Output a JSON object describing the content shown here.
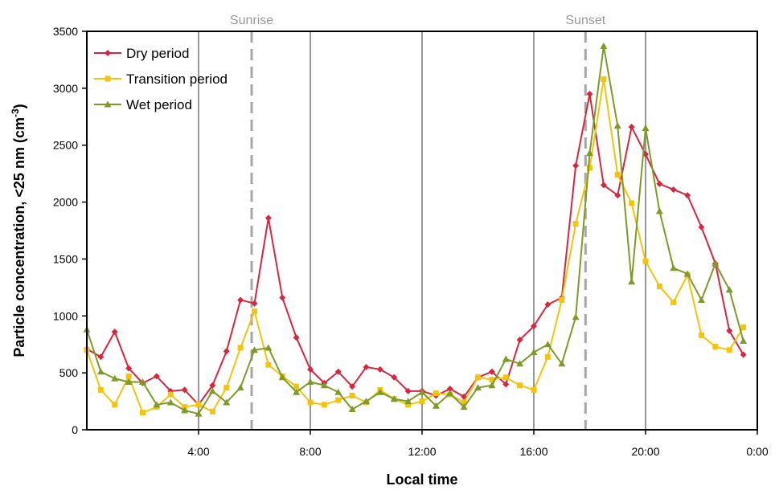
{
  "chart_data": {
    "type": "line",
    "xlabel": "Local time",
    "ylabel": "Particle concentration, <25 nm (cm",
    "ylabel_sup": "-3",
    "ylabel_end": ")",
    "xlim": [
      0,
      24
    ],
    "ylim": [
      0,
      3500
    ],
    "x_ticks": [
      {
        "v": 4,
        "label": "4:00"
      },
      {
        "v": 8,
        "label": "8:00"
      },
      {
        "v": 12,
        "label": "12:00"
      },
      {
        "v": 16,
        "label": "16:00"
      },
      {
        "v": 20,
        "label": "20:00"
      },
      {
        "v": 24,
        "label": "0:00"
      }
    ],
    "y_ticks": [
      0,
      500,
      1000,
      1500,
      2000,
      2500,
      3000,
      3500
    ],
    "solid_vlines": [
      4,
      8,
      12,
      16,
      20
    ],
    "annotations": [
      {
        "label": "Sunrise",
        "x": 5.9
      },
      {
        "label": "Sunset",
        "x": 17.85
      }
    ],
    "legend_position": "top-left",
    "x": [
      0,
      0.5,
      1,
      1.5,
      2,
      2.5,
      3,
      3.5,
      4,
      4.5,
      5,
      5.5,
      6,
      6.5,
      7,
      7.5,
      8,
      8.5,
      9,
      9.5,
      10,
      10.5,
      11,
      11.5,
      12,
      12.5,
      13,
      13.5,
      14,
      14.5,
      15,
      15.5,
      16,
      16.5,
      17,
      17.5,
      18,
      18.5,
      19,
      19.5,
      20,
      20.5,
      21,
      21.5,
      22,
      22.5,
      23,
      23.5
    ],
    "series": [
      {
        "name": "Dry period",
        "color": "#d7263d",
        "marker": "diamond",
        "values": [
          710,
          640,
          860,
          540,
          410,
          470,
          340,
          350,
          220,
          390,
          690,
          1140,
          1110,
          1860,
          1160,
          810,
          530,
          410,
          510,
          380,
          550,
          530,
          460,
          340,
          340,
          300,
          360,
          290,
          460,
          510,
          400,
          790,
          910,
          1100,
          1160,
          2320,
          2950,
          2150,
          2060,
          2660,
          2420,
          2160,
          2110,
          2060,
          1780,
          1460,
          870,
          660
        ]
      },
      {
        "name": "Transition period",
        "color": "#f2c40f",
        "marker": "square",
        "values": [
          700,
          350,
          220,
          470,
          150,
          200,
          310,
          200,
          220,
          160,
          370,
          720,
          1040,
          570,
          470,
          380,
          240,
          220,
          260,
          300,
          240,
          350,
          270,
          220,
          250,
          320,
          310,
          240,
          460,
          440,
          460,
          390,
          350,
          640,
          1140,
          1810,
          2300,
          3080,
          2240,
          1990,
          1480,
          1260,
          1120,
          1360,
          830,
          730,
          700,
          900
        ]
      },
      {
        "name": "Wet period",
        "color": "#7d9a2a",
        "marker": "triangle",
        "values": [
          880,
          510,
          450,
          420,
          420,
          220,
          240,
          170,
          140,
          340,
          240,
          370,
          700,
          720,
          460,
          330,
          420,
          390,
          330,
          180,
          250,
          330,
          270,
          250,
          330,
          210,
          320,
          200,
          370,
          390,
          620,
          580,
          680,
          750,
          580,
          990,
          2430,
          3370,
          2670,
          1300,
          2650,
          1920,
          1420,
          1370,
          1140,
          1460,
          1230,
          780
        ]
      }
    ]
  }
}
